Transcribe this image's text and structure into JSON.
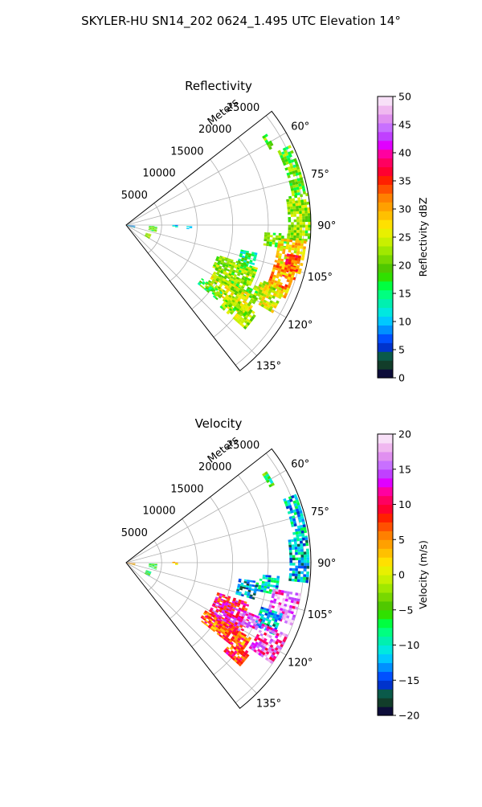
{
  "suptitle": "SKYLER-HU  SN14_202  0624_1.495 UTC Elevation 14°",
  "chart_data": [
    {
      "type": "heatmap",
      "projection": "polar-sector",
      "title": "Reflectivity",
      "radial_label": "Meters",
      "radial_ticks": [
        5000,
        10000,
        15000,
        20000,
        25000
      ],
      "radial_tick_labels": [
        "5000",
        "10000",
        "15000",
        "20000",
        "25000"
      ],
      "rlim": [
        0,
        26000
      ],
      "azimuth_range_deg": [
        52,
        142
      ],
      "azimuth_ticks_deg": [
        60,
        75,
        90,
        105,
        120,
        135
      ],
      "azimuth_tick_labels": [
        "60°",
        "75°",
        "90°",
        "105°",
        "120°",
        "135°"
      ],
      "grid": true,
      "colorbar": {
        "label": "Reflectivity dBZ",
        "range": [
          0,
          50
        ],
        "ticks": [
          0,
          5,
          10,
          15,
          20,
          25,
          30,
          35,
          40,
          45,
          50
        ],
        "tick_labels": [
          "0",
          "5",
          "10",
          "15",
          "20",
          "25",
          "30",
          "35",
          "40",
          "45",
          "50"
        ],
        "colors": [
          "#0d0d3a",
          "#123d2a",
          "#0a5a4a",
          "#0033cc",
          "#0050ff",
          "#0090ff",
          "#00c8ff",
          "#00e8e0",
          "#00f0b0",
          "#00ff80",
          "#00ff40",
          "#30e000",
          "#50c800",
          "#78d800",
          "#a0e800",
          "#c8f000",
          "#e8f000",
          "#ffe000",
          "#ffc000",
          "#ffa000",
          "#ff8000",
          "#ff5000",
          "#ff2000",
          "#ff0030",
          "#ff0060",
          "#ff00a0",
          "#e000ff",
          "#c040ff",
          "#c870ff",
          "#e090f0",
          "#f0b8f0",
          "#f8e0f8"
        ]
      },
      "echo_regions": [
        {
          "az": [
            57,
            62
          ],
          "r": [
            22800,
            23600
          ],
          "value": 20
        },
        {
          "az": [
            64,
            80
          ],
          "r": [
            23700,
            25600
          ],
          "value": 20
        },
        {
          "az": [
            80,
            95
          ],
          "r": [
            22800,
            25800
          ],
          "value": 22
        },
        {
          "az": [
            93,
            98
          ],
          "r": [
            19500,
            23000
          ],
          "value": 20
        },
        {
          "az": [
            95,
            105
          ],
          "r": [
            21500,
            25500
          ],
          "value": 27
        },
        {
          "az": [
            100,
            108
          ],
          "r": [
            23000,
            25000
          ],
          "value": 35
        },
        {
          "az": [
            104,
            114
          ],
          "r": [
            21500,
            24500
          ],
          "value": 30
        },
        {
          "az": [
            112,
            121
          ],
          "r": [
            20500,
            24000
          ],
          "value": 25
        },
        {
          "az": [
            102,
            110
          ],
          "r": [
            16500,
            18800
          ],
          "value": 15
        },
        {
          "az": [
            108,
            116
          ],
          "r": [
            13500,
            19500
          ],
          "value": 22
        },
        {
          "az": [
            115,
            121
          ],
          "r": [
            14000,
            20500
          ],
          "value": 21
        },
        {
          "az": [
            119,
            128
          ],
          "r": [
            14000,
            21000
          ],
          "value": 24
        },
        {
          "az": [
            124,
            131
          ],
          "r": [
            17500,
            22000
          ],
          "value": 22
        },
        {
          "az": [
            125,
            129
          ],
          "r": [
            13000,
            16500
          ],
          "value": 18
        },
        {
          "az": [
            89,
            92
          ],
          "r": [
            6500,
            7200
          ],
          "value": 10
        },
        {
          "az": [
            91,
            93
          ],
          "r": [
            8500,
            9200
          ],
          "value": 12
        },
        {
          "az": [
            92,
            102
          ],
          "r": [
            3200,
            4200
          ],
          "value": 20
        },
        {
          "az": [
            110,
            120
          ],
          "r": [
            3000,
            3500
          ],
          "value": 22
        },
        {
          "az": [
            92,
            110
          ],
          "r": [
            100,
            1200
          ],
          "value": 8
        }
      ]
    },
    {
      "type": "heatmap",
      "projection": "polar-sector",
      "title": "Velocity",
      "radial_label": "Meters",
      "radial_ticks": [
        5000,
        10000,
        15000,
        20000,
        25000
      ],
      "radial_tick_labels": [
        "5000",
        "10000",
        "15000",
        "20000",
        "25000"
      ],
      "rlim": [
        0,
        26000
      ],
      "azimuth_range_deg": [
        52,
        142
      ],
      "azimuth_ticks_deg": [
        60,
        75,
        90,
        105,
        120,
        135
      ],
      "azimuth_tick_labels": [
        "60°",
        "75°",
        "90°",
        "105°",
        "120°",
        "135°"
      ],
      "grid": true,
      "colorbar": {
        "label": "Velocity (m/s)",
        "range": [
          -20,
          20
        ],
        "ticks": [
          -20,
          -15,
          -10,
          -5,
          0,
          5,
          10,
          15,
          20
        ],
        "tick_labels": [
          "−20",
          "−15",
          "−10",
          "−5",
          "0",
          "5",
          "10",
          "15",
          "20"
        ],
        "colors": [
          "#0d0d3a",
          "#123d2a",
          "#0a5a4a",
          "#0033cc",
          "#0050ff",
          "#0090ff",
          "#00c8ff",
          "#00e8e0",
          "#00f0b0",
          "#00ff80",
          "#00ff40",
          "#30e000",
          "#50c800",
          "#78d800",
          "#a0e800",
          "#c8f000",
          "#e8f000",
          "#ffe000",
          "#ffc000",
          "#ffa000",
          "#ff8000",
          "#ff5000",
          "#ff2000",
          "#ff0030",
          "#ff0060",
          "#ff00a0",
          "#e000ff",
          "#c040ff",
          "#c870ff",
          "#e090f0",
          "#f0b8f0",
          "#f8e0f8"
        ]
      },
      "echo_regions": [
        {
          "az": [
            57,
            62
          ],
          "r": [
            22800,
            23600
          ],
          "value": -6
        },
        {
          "az": [
            68,
            82
          ],
          "r": [
            23800,
            25600
          ],
          "value": -11
        },
        {
          "az": [
            82,
            96
          ],
          "r": [
            23000,
            25800
          ],
          "value": -12
        },
        {
          "az": [
            95,
            102
          ],
          "r": [
            18500,
            21500
          ],
          "value": -11
        },
        {
          "az": [
            98,
            106
          ],
          "r": [
            16000,
            18800
          ],
          "value": -14
        },
        {
          "az": [
            100,
            110
          ],
          "r": [
            21000,
            25000
          ],
          "value": 16
        },
        {
          "az": [
            108,
            116
          ],
          "r": [
            20000,
            23000
          ],
          "value": -12
        },
        {
          "az": [
            114,
            124
          ],
          "r": [
            21000,
            25000
          ],
          "value": 14
        },
        {
          "az": [
            108,
            116
          ],
          "r": [
            13500,
            18000
          ],
          "value": 10
        },
        {
          "az": [
            115,
            124
          ],
          "r": [
            13500,
            19000
          ],
          "value": 11
        },
        {
          "az": [
            121,
            128
          ],
          "r": [
            13000,
            20500
          ],
          "value": 7
        },
        {
          "az": [
            126,
            132
          ],
          "r": [
            18500,
            21500
          ],
          "value": 8
        },
        {
          "az": [
            112,
            118
          ],
          "r": [
            17500,
            20500
          ],
          "value": 15
        },
        {
          "az": [
            89,
            92
          ],
          "r": [
            6500,
            7200
          ],
          "value": 3
        },
        {
          "az": [
            92,
            102
          ],
          "r": [
            3200,
            4200
          ],
          "value": -6
        },
        {
          "az": [
            110,
            120
          ],
          "r": [
            3000,
            3500
          ],
          "value": -7
        },
        {
          "az": [
            94,
            108
          ],
          "r": [
            100,
            1200
          ],
          "value": 4
        }
      ]
    }
  ]
}
